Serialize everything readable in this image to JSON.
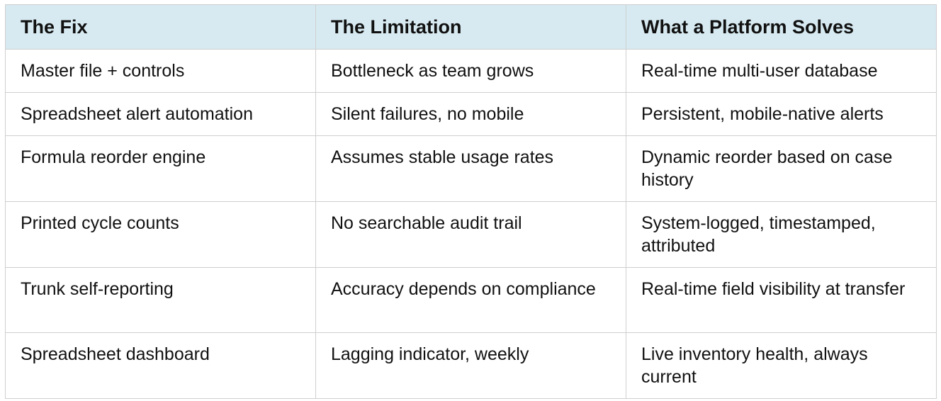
{
  "table": {
    "headers": [
      "The Fix",
      "The Limitation",
      "What a Platform Solves"
    ],
    "rows": [
      [
        "Master file + controls",
        "Bottleneck as team grows",
        "Real-time multi-user database"
      ],
      [
        "Spreadsheet alert automation",
        "Silent failures, no mobile",
        "Persistent, mobile-native alerts"
      ],
      [
        "Formula reorder engine",
        "Assumes stable usage rates",
        "Dynamic reorder based on case history"
      ],
      [
        "Printed cycle counts",
        "No searchable audit trail",
        "System-logged, timestamped, attributed"
      ],
      [
        "Trunk self-reporting",
        "Accuracy depends on compliance",
        "Real-time field visibility at transfer"
      ],
      [
        "Spreadsheet dashboard",
        "Lagging indicator, weekly",
        "Live inventory health, always current"
      ]
    ]
  },
  "colors": {
    "header_background": "#d7eaf1",
    "border": "#cfcfcf",
    "text": "#111111"
  }
}
